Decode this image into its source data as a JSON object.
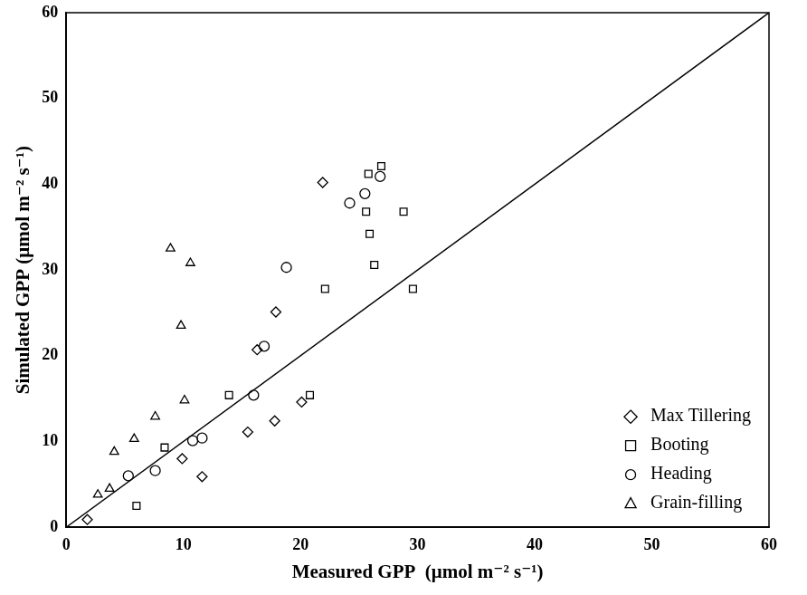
{
  "chart_data": {
    "type": "scatter",
    "x_label": "Measured GPP  (μmol m⁻² s⁻¹)",
    "y_label": "Simulated GPP (μmol m⁻² s⁻¹)",
    "xlim": [
      0,
      60
    ],
    "ylim": [
      0,
      60
    ],
    "xticks": [
      0,
      10,
      20,
      30,
      40,
      50,
      60
    ],
    "yticks": [
      0,
      10,
      20,
      30,
      40,
      50,
      60
    ],
    "grid": false,
    "legend": "lower right",
    "series": [
      {
        "name": "Max Tillering",
        "marker": "diamond",
        "color": "#000000",
        "x": [
          1.8,
          9.9,
          11.6,
          15.5,
          16.3,
          17.8,
          17.9,
          20.1,
          21.9
        ],
        "values": [
          0.9,
          8.0,
          5.9,
          11.1,
          20.7,
          12.4,
          25.1,
          14.6,
          40.2
        ]
      },
      {
        "name": "Booting",
        "marker": "square",
        "color": "#000000",
        "x": [
          6.0,
          8.4,
          13.9,
          20.8,
          22.1,
          25.6,
          25.8,
          25.9,
          26.3,
          26.9,
          28.8,
          29.6
        ],
        "values": [
          2.5,
          9.3,
          15.4,
          15.4,
          27.8,
          36.8,
          41.2,
          34.2,
          30.6,
          42.1,
          36.8,
          27.8
        ]
      },
      {
        "name": "Heading",
        "marker": "circle",
        "color": "#000000",
        "x": [
          5.3,
          7.6,
          10.8,
          11.6,
          16.0,
          16.9,
          18.8,
          24.2,
          25.5,
          26.8
        ],
        "values": [
          6.0,
          6.6,
          10.1,
          10.4,
          15.4,
          21.1,
          30.3,
          37.8,
          38.9,
          40.9
        ]
      },
      {
        "name": "Grain-filling",
        "marker": "triangle",
        "color": "#000000",
        "x": [
          2.7,
          3.7,
          4.1,
          5.8,
          7.6,
          8.9,
          9.8,
          10.1,
          10.6
        ],
        "values": [
          3.8,
          4.5,
          8.8,
          10.3,
          12.9,
          32.5,
          23.5,
          14.8,
          30.8
        ]
      },
      {
        "type": "line",
        "line_style": "solid",
        "color": "#000000",
        "x": [
          0,
          60
        ],
        "values": [
          0,
          60
        ]
      }
    ]
  }
}
